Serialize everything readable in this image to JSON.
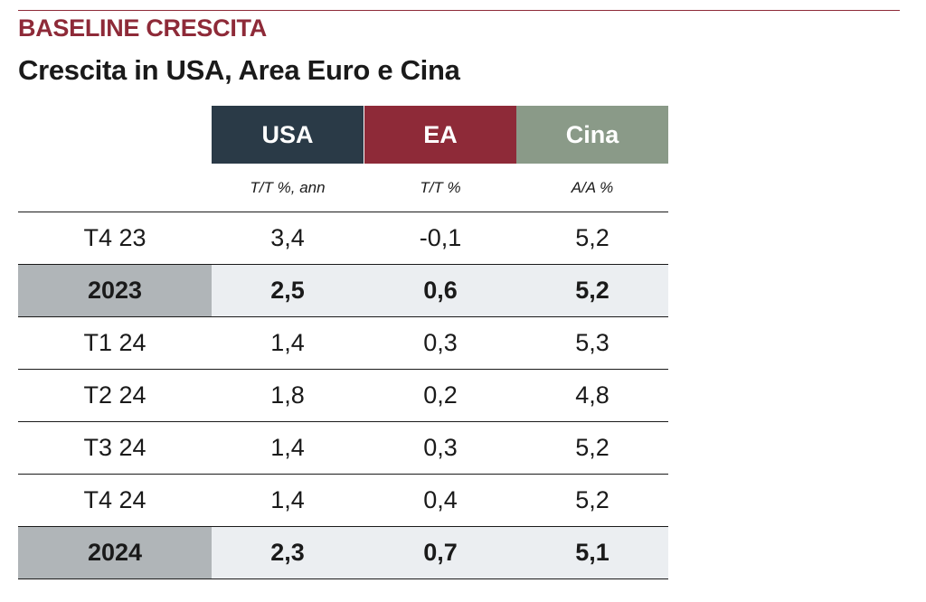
{
  "header": {
    "kicker": "BASELINE CRESCITA",
    "title": "Crescita in USA, Area Euro e Cina"
  },
  "chart_data": {
    "type": "table",
    "title": "Crescita in USA, Area Euro e Cina",
    "columns": [
      {
        "name": "USA",
        "unit": "T/T %, ann",
        "color": "#2a3a47"
      },
      {
        "name": "EA",
        "unit": "T/T %",
        "color": "#8e2a38"
      },
      {
        "name": "Cina",
        "unit": "A/A %",
        "color": "#8a9a88"
      }
    ],
    "rows": [
      {
        "label": "T4 23",
        "values": [
          "3,4",
          "-0,1",
          "5,2"
        ],
        "highlight": false
      },
      {
        "label": "2023",
        "values": [
          "2,5",
          "0,6",
          "5,2"
        ],
        "highlight": true
      },
      {
        "label": "T1 24",
        "values": [
          "1,4",
          "0,3",
          "5,3"
        ],
        "highlight": false
      },
      {
        "label": "T2 24",
        "values": [
          "1,8",
          "0,2",
          "4,8"
        ],
        "highlight": false
      },
      {
        "label": "T3 24",
        "values": [
          "1,4",
          "0,3",
          "5,2"
        ],
        "highlight": false
      },
      {
        "label": "T4 24",
        "values": [
          "1,4",
          "0,4",
          "5,2"
        ],
        "highlight": false
      },
      {
        "label": "2024",
        "values": [
          "2,3",
          "0,7",
          "5,1"
        ],
        "highlight": true
      }
    ]
  }
}
